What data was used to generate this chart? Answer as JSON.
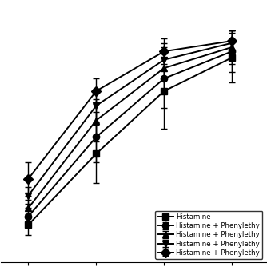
{
  "x_values": [
    1,
    2,
    3,
    4
  ],
  "series": [
    {
      "label": "Histamine",
      "marker": "s",
      "y": [
        8.0,
        42.0,
        72.0,
        88.0
      ],
      "yerr": [
        5.0,
        14.0,
        18.0,
        12.0
      ]
    },
    {
      "label": "Histamine + Phenylethy",
      "marker": "o",
      "y": [
        12.0,
        50.0,
        78.0,
        91.0
      ],
      "yerr": [
        4.0,
        12.0,
        14.0,
        10.0
      ]
    },
    {
      "label": "Histamine + Phenylethy",
      "marker": "^",
      "y": [
        16.0,
        58.0,
        83.0,
        93.0
      ],
      "yerr": [
        4.0,
        10.0,
        10.0,
        8.0
      ]
    },
    {
      "label": "Histamine + Phenylethy",
      "marker": "v",
      "y": [
        22.0,
        65.0,
        87.0,
        95.0
      ],
      "yerr": [
        4.0,
        8.0,
        8.0,
        6.0
      ]
    },
    {
      "label": "Histamine + Phenylethy",
      "marker": "D",
      "y": [
        30.0,
        72.0,
        91.0,
        96.0
      ],
      "yerr": [
        8.0,
        6.0,
        6.0,
        5.0
      ]
    }
  ],
  "xlim": [
    0.6,
    4.5
  ],
  "ylim": [
    -10,
    115
  ],
  "legend_loc": "lower right",
  "line_color": "black",
  "marker_color": "black",
  "markersize": 6,
  "linewidth": 1.4,
  "capsize": 3,
  "elinewidth": 1.0,
  "legend_fontsize": 6.2,
  "figsize": [
    3.34,
    3.34
  ],
  "dpi": 100
}
